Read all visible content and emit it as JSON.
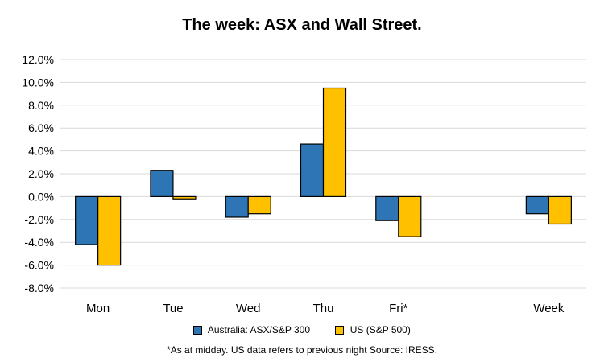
{
  "chart_data": {
    "type": "bar",
    "title": "The week:  ASX and Wall Street.",
    "categories": [
      "Mon",
      "Tue",
      "Wed",
      "Thu",
      "Fri*",
      "",
      "Week"
    ],
    "series": [
      {
        "name": "Australia: ASX/S&P 300",
        "color": "#2E75B6",
        "values": [
          -4.2,
          2.3,
          -1.8,
          4.6,
          -2.1,
          null,
          -1.5
        ]
      },
      {
        "name": "US (S&P 500)",
        "color": "#FFC000",
        "values": [
          -6.0,
          -0.2,
          -1.5,
          9.5,
          -3.5,
          null,
          -2.4
        ]
      }
    ],
    "ylim": [
      -8,
      12
    ],
    "ytick_step": 2,
    "ytick_labels": [
      "-8.0%",
      "-6.0%",
      "-4.0%",
      "-2.0%",
      "0.0%",
      "2.0%",
      "4.0%",
      "6.0%",
      "8.0%",
      "10.0%",
      "12.0%"
    ],
    "grid": true,
    "legend_position": "bottom",
    "xlabel": "",
    "ylabel": ""
  },
  "footnote": "*As at midday. US data refers to previous night  Source:  IRESS."
}
